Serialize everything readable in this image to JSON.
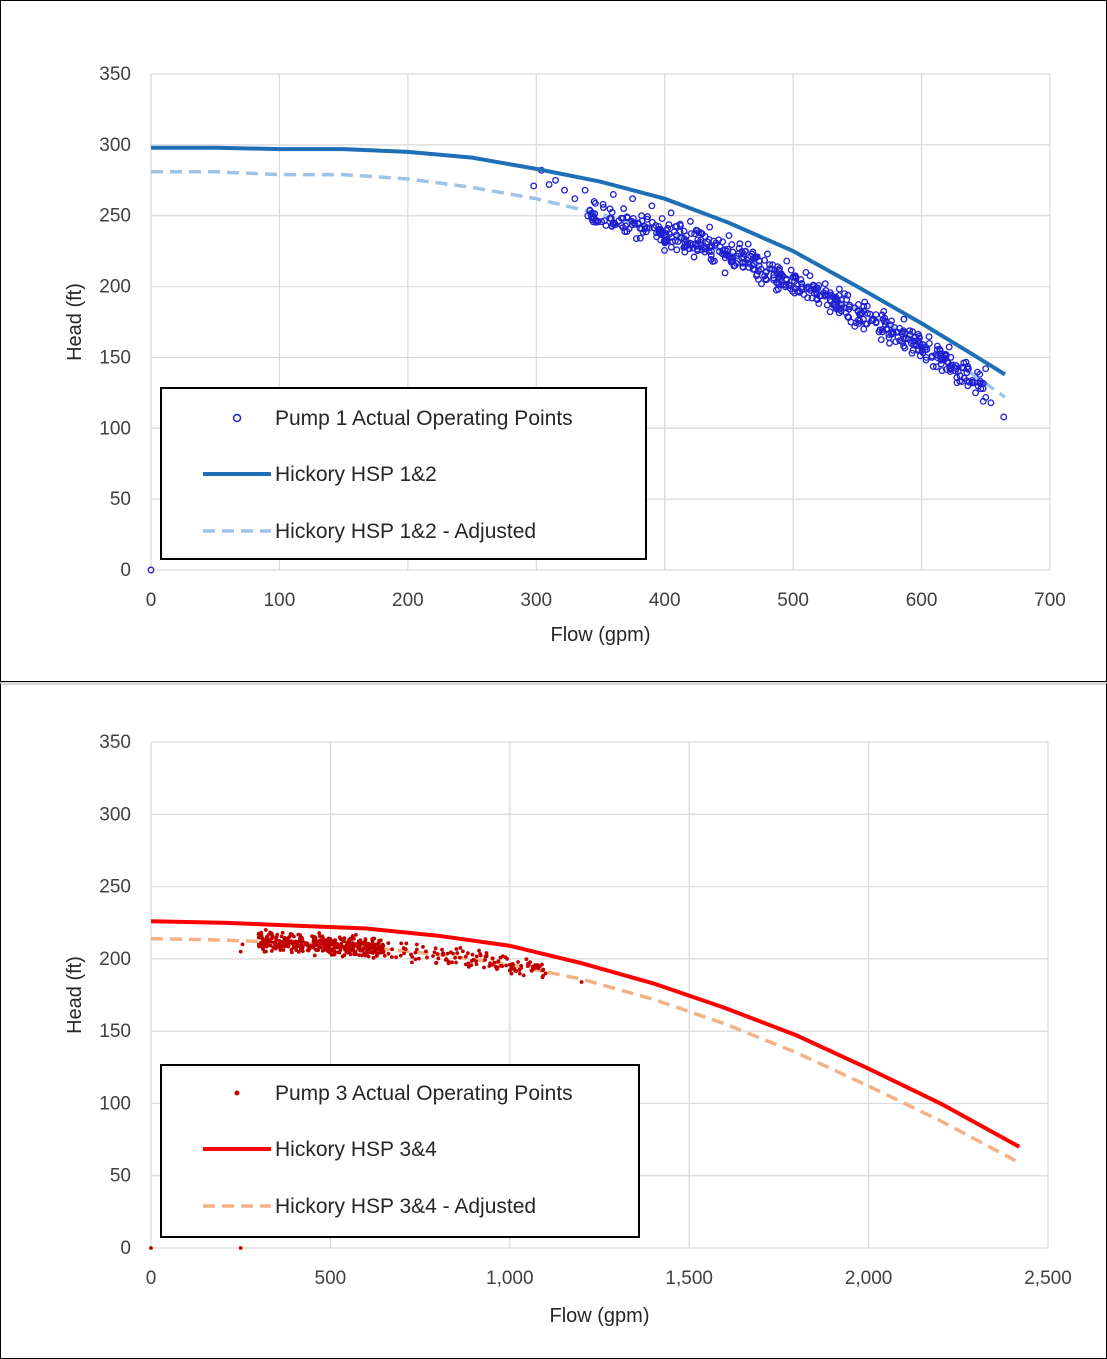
{
  "charts": [
    {
      "id": "chart1",
      "colors": {
        "points": "#1f1fd1",
        "line": "#1f6fb7",
        "adjusted": "#9dc3e6",
        "grid": "#d9d9d9"
      },
      "point_style": "ring",
      "chart_data": {
        "type": "scatter",
        "xlabel": "Flow (gpm)",
        "ylabel": "Head (ft)",
        "xlim": [
          0,
          700
        ],
        "ylim": [
          0,
          350
        ],
        "x_ticks": [
          0,
          100,
          200,
          300,
          400,
          500,
          600,
          700
        ],
        "y_ticks": [
          0,
          50,
          100,
          150,
          200,
          250,
          300,
          350
        ],
        "x_tick_labels": [
          "0",
          "100",
          "200",
          "300",
          "400",
          "500",
          "600",
          "700"
        ],
        "y_tick_labels": [
          "0",
          "50",
          "100",
          "150",
          "200",
          "250",
          "300",
          "350"
        ],
        "grid": true,
        "legend_position": "bottom-left",
        "series": [
          {
            "name": "Pump 1 Actual Operating Points",
            "kind": "scatter",
            "points": [
              [
                0,
                0
              ],
              [
                304,
                282
              ],
              [
                298,
                271
              ],
              [
                310,
                272
              ],
              [
                315,
                275
              ],
              [
                322,
                268
              ],
              [
                330,
                262
              ],
              [
                338,
                268
              ],
              [
                345,
                260
              ],
              [
                352,
                258
              ],
              [
                360,
                265
              ],
              [
                368,
                255
              ],
              [
                375,
                262
              ],
              [
                382,
                250
              ],
              [
                390,
                257
              ],
              [
                398,
                248
              ],
              [
                405,
                252
              ],
              [
                412,
                244
              ],
              [
                420,
                246
              ],
              [
                428,
                238
              ],
              [
                435,
                242
              ],
              [
                442,
                233
              ],
              [
                450,
                236
              ],
              [
                458,
                227
              ],
              [
                465,
                230
              ],
              [
                472,
                221
              ],
              [
                480,
                223
              ],
              [
                488,
                214
              ],
              [
                495,
                218
              ],
              [
                502,
                207
              ],
              [
                510,
                210
              ],
              [
                518,
                199
              ],
              [
                525,
                202
              ],
              [
                532,
                192
              ],
              [
                540,
                195
              ],
              [
                548,
                185
              ],
              [
                555,
                186
              ],
              [
                562,
                176
              ],
              [
                570,
                177
              ],
              [
                578,
                167
              ],
              [
                585,
                168
              ],
              [
                592,
                160
              ],
              [
                600,
                157
              ],
              [
                608,
                150
              ],
              [
                615,
                148
              ],
              [
                622,
                142
              ],
              [
                630,
                137
              ],
              [
                636,
                130
              ],
              [
                642,
                125
              ],
              [
                648,
                119
              ],
              [
                654,
                118
              ],
              [
                664,
                108
              ],
              [
                460,
                220
              ],
              [
                520,
                188
              ],
              [
                545,
                175
              ],
              [
                575,
                160
              ],
              [
                470,
                212
              ],
              [
                395,
                240
              ],
              [
                555,
                170
              ],
              [
                618,
                152
              ]
            ],
            "band": {
              "x_range": [
                340,
                650
              ],
              "count": 500,
              "std": 6
            }
          },
          {
            "name": "Hickory HSP 1&2",
            "kind": "line",
            "points": [
              [
                0,
                298
              ],
              [
                50,
                298
              ],
              [
                100,
                297
              ],
              [
                150,
                297
              ],
              [
                200,
                295
              ],
              [
                250,
                291
              ],
              [
                300,
                283
              ],
              [
                350,
                274
              ],
              [
                400,
                262
              ],
              [
                450,
                245
              ],
              [
                500,
                225
              ],
              [
                550,
                200
              ],
              [
                600,
                174
              ],
              [
                640,
                152
              ],
              [
                665,
                138
              ]
            ]
          },
          {
            "name": "Hickory HSP 1&2 - Adjusted",
            "kind": "dashed",
            "points": [
              [
                0,
                281
              ],
              [
                50,
                281
              ],
              [
                100,
                279
              ],
              [
                150,
                279
              ],
              [
                200,
                276
              ],
              [
                250,
                270
              ],
              [
                300,
                262
              ],
              [
                350,
                251
              ],
              [
                400,
                239
              ],
              [
                450,
                224
              ],
              [
                500,
                205
              ],
              [
                550,
                184
              ],
              [
                600,
                160
              ],
              [
                640,
                138
              ],
              [
                665,
                122
              ]
            ]
          }
        ]
      },
      "layout": {
        "panel_height": 682,
        "plot": [
          150,
          73,
          1049,
          569
        ],
        "legend_box": [
          160,
          387,
          645,
          558
        ],
        "legend_row_y": [
          417,
          473,
          530
        ],
        "xlabel_y": 640,
        "ylabel_x": 80
      }
    },
    {
      "id": "chart2",
      "colors": {
        "points": "#c00000",
        "line": "#ff0000",
        "adjusted": "#f4b183",
        "grid": "#d9d9d9"
      },
      "point_style": "dot",
      "chart_data": {
        "type": "scatter",
        "xlabel": "Flow (gpm)",
        "ylabel": "Head (ft)",
        "xlim": [
          0,
          2500
        ],
        "ylim": [
          0,
          350
        ],
        "x_ticks": [
          0,
          500,
          1000,
          1500,
          2000,
          2500
        ],
        "y_ticks": [
          0,
          50,
          100,
          150,
          200,
          250,
          300,
          350
        ],
        "x_tick_labels": [
          "0",
          "500",
          "1,000",
          "1,500",
          "2,000",
          "2,500"
        ],
        "y_tick_labels": [
          "0",
          "50",
          "100",
          "150",
          "200",
          "250",
          "300",
          "350"
        ],
        "grid": true,
        "legend_position": "bottom-left",
        "series": [
          {
            "name": "Pump 3 Actual Operating Points",
            "kind": "scatter",
            "points": [
              [
                0,
                0
              ],
              [
                250,
                0
              ],
              [
                250,
                205
              ],
              [
                255,
                210
              ],
              [
                1200,
                184
              ],
              [
                1100,
                190
              ],
              [
                1000,
                192
              ],
              [
                1050,
                195
              ],
              [
                300,
                217
              ],
              [
                320,
                220
              ]
            ],
            "band": {
              "x_range": [
                300,
                1100
              ],
              "count": 500,
              "std": 4,
              "dense_x_range": [
                300,
                650
              ]
            }
          },
          {
            "name": "Hickory HSP 3&4",
            "kind": "line",
            "points": [
              [
                0,
                226
              ],
              [
                200,
                225
              ],
              [
                400,
                223
              ],
              [
                600,
                221
              ],
              [
                800,
                216
              ],
              [
                1000,
                209
              ],
              [
                1200,
                197
              ],
              [
                1400,
                183
              ],
              [
                1600,
                166
              ],
              [
                1800,
                147
              ],
              [
                2000,
                124
              ],
              [
                2200,
                100
              ],
              [
                2420,
                70
              ]
            ]
          },
          {
            "name": "Hickory HSP 3&4 - Adjusted",
            "kind": "dashed",
            "points": [
              [
                0,
                214
              ],
              [
                200,
                213
              ],
              [
                400,
                211
              ],
              [
                600,
                208
              ],
              [
                800,
                203
              ],
              [
                1000,
                196
              ],
              [
                1200,
                186
              ],
              [
                1400,
                172
              ],
              [
                1600,
                155
              ],
              [
                1800,
                135
              ],
              [
                2000,
                112
              ],
              [
                2200,
                88
              ],
              [
                2420,
                59
              ]
            ]
          }
        ]
      },
      "layout": {
        "panel_height": 677,
        "plot": [
          150,
          57,
          1047,
          563
        ],
        "legend_box": [
          160,
          380,
          638,
          552
        ],
        "legend_row_y": [
          408,
          464,
          521
        ],
        "xlabel_y": 637,
        "ylabel_x": 80
      }
    }
  ]
}
